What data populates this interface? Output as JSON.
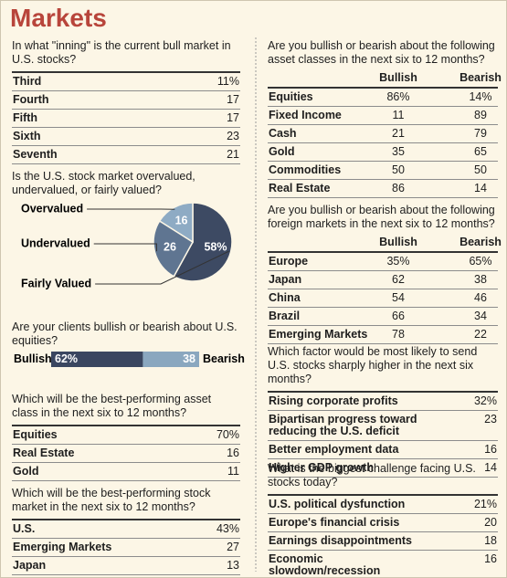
{
  "title": "Markets",
  "inning": {
    "question": "In what \"inning\" is the current bull market in U.S. stocks?",
    "rows": [
      [
        "Third",
        "11%"
      ],
      [
        "Fourth",
        "17"
      ],
      [
        "Fifth",
        "17"
      ],
      [
        "Sixth",
        "23"
      ],
      [
        "Seventh",
        "21"
      ]
    ]
  },
  "asset_class": {
    "question": "Which will be the best-performing asset class in the next six to 12 months?",
    "rows": [
      [
        "Equities",
        "70%"
      ],
      [
        "Real Estate",
        "16"
      ],
      [
        "Gold",
        "11"
      ]
    ]
  },
  "stock_market": {
    "question": "Which will be the best-performing stock market in the next six to 12 months?",
    "rows": [
      [
        "U.S.",
        "43%"
      ],
      [
        "Emerging Markets",
        "27"
      ],
      [
        "Japan",
        "13"
      ]
    ]
  },
  "asset_outlook": {
    "question": "Are you bullish or bearish about the following asset classes in the next six to 12 months?",
    "columns": [
      "Bullish",
      "Bearish"
    ],
    "rows": [
      [
        "Equities",
        "86%",
        "14%"
      ],
      [
        "Fixed Income",
        "11",
        "89"
      ],
      [
        "Cash",
        "21",
        "79"
      ],
      [
        "Gold",
        "35",
        "65"
      ],
      [
        "Commodities",
        "50",
        "50"
      ],
      [
        "Real Estate",
        "86",
        "14"
      ]
    ]
  },
  "foreign_outlook": {
    "question": "Are you bullish or bearish about the following foreign markets in the next six to 12 months?",
    "columns": [
      "Bullish",
      "Bearish"
    ],
    "rows": [
      [
        "Europe",
        "35%",
        "65%"
      ],
      [
        "Japan",
        "62",
        "38"
      ],
      [
        "China",
        "54",
        "46"
      ],
      [
        "Brazil",
        "66",
        "34"
      ],
      [
        "Emerging Markets",
        "78",
        "22"
      ]
    ]
  },
  "factor": {
    "question": "Which factor would be most likely to send U.S. stocks sharply higher in the next six months?",
    "rows": [
      [
        "Rising corporate profits",
        "32%"
      ],
      [
        "Bipartisan progress toward reducing the U.S. deficit",
        "23"
      ],
      [
        "Better employment data",
        "16"
      ],
      [
        "Higher GDP growth",
        "14"
      ]
    ]
  },
  "challenge": {
    "question": "What is the biggest challenge facing U.S. stocks today?",
    "rows": [
      [
        "U.S. political dysfunction",
        "21%"
      ],
      [
        "Europe's financial crisis",
        "20"
      ],
      [
        "Earnings disappointments",
        "18"
      ],
      [
        "Economic slowdown/recession",
        "16"
      ]
    ]
  },
  "chart_data": [
    {
      "type": "pie",
      "title": "Is the U.S. stock market overvalued, undervalued, or fairly valued?",
      "categories": [
        "Overvalued",
        "Undervalued",
        "Fairly Valued"
      ],
      "values": [
        16,
        26,
        58
      ],
      "value_labels": [
        "16",
        "26",
        "58%"
      ],
      "colors": [
        "#8eabc4",
        "#5f7591",
        "#3d4a63"
      ]
    },
    {
      "type": "bar",
      "title": "Are your clients bullish or bearish about U.S. equities?",
      "categories": [
        "Bullish",
        "Bearish"
      ],
      "values": [
        62,
        38
      ],
      "value_labels": [
        "62%",
        "38"
      ],
      "colors": [
        "#3a4660",
        "#8aa7bf"
      ]
    }
  ]
}
